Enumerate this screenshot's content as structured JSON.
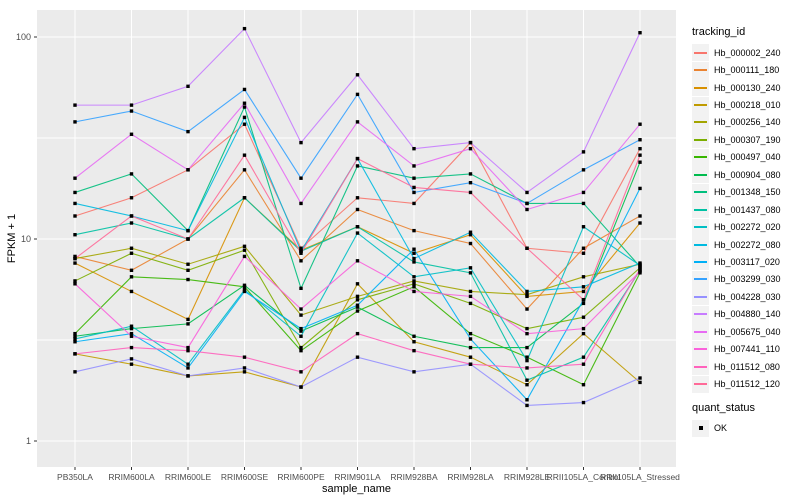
{
  "figure": {
    "x_axis_label": "sample_name",
    "y_axis_label": "FPKM + 1"
  },
  "legend": {
    "tracking_title": "tracking_id",
    "quant_title": "quant_status",
    "quant_items": [
      {
        "label": "OK"
      }
    ]
  },
  "chart_data": {
    "type": "line",
    "x_type": "categorical",
    "y_scale": "log10",
    "title": "",
    "xlabel": "sample_name",
    "ylabel": "FPKM + 1",
    "y_ticks": [
      1,
      10,
      100
    ],
    "y_minor_ticks": [
      3.1623,
      31.623
    ],
    "ylim": [
      0.74,
      135
    ],
    "grid": true,
    "legend_position": "right",
    "panel_bg": "#EBEBEB",
    "grid_color": "#FFFFFF",
    "key_bg": "#F2F2F2",
    "tick_text_color": "#4D4D4D",
    "marker": {
      "shape": "square",
      "color": "#000000",
      "label": "OK"
    },
    "categories": [
      "PB350LA",
      "RRIM600LA",
      "RRIM600LE",
      "RRIM600SE",
      "RRIM600PE",
      "RRIM901LA",
      "RRIM928BA",
      "RRIM928LA",
      "RRIM928LE",
      "RRII105LA_Control",
      "RRII105LA_Stressed"
    ],
    "series": [
      {
        "name": "Hb_000002_240",
        "color": "#F8766D",
        "values": [
          13,
          16,
          22,
          37,
          9,
          16,
          15,
          30,
          9,
          8.5,
          28
        ]
      },
      {
        "name": "Hb_000111_180",
        "color": "#EA8331",
        "values": [
          8.2,
          7,
          10,
          22,
          7.8,
          14,
          11,
          9.5,
          4.5,
          9,
          13
        ]
      },
      {
        "name": "Hb_000130_240",
        "color": "#D89000",
        "values": [
          7.6,
          5.5,
          4,
          16,
          8.8,
          11.5,
          8.5,
          10.5,
          5.2,
          5.5,
          12
        ]
      },
      {
        "name": "Hb_000218_010",
        "color": "#C09B00",
        "values": [
          2.7,
          2.4,
          2.1,
          2.2,
          1.85,
          6,
          3.1,
          2.6,
          1.9,
          3.4,
          1.95
        ]
      },
      {
        "name": "Hb_000256_140",
        "color": "#A3A500",
        "values": [
          8,
          9,
          7.5,
          9.2,
          4.2,
          5.2,
          6.2,
          5.5,
          5.3,
          6.5,
          7.5
        ]
      },
      {
        "name": "Hb_000307_190",
        "color": "#7CAE00",
        "values": [
          6.2,
          8.5,
          7,
          8.8,
          2.9,
          5,
          6,
          4.8,
          3.6,
          4.1,
          7.2
        ]
      },
      {
        "name": "Hb_000497_040",
        "color": "#39B600",
        "values": [
          3.4,
          6.5,
          6.3,
          5.8,
          2.8,
          4.4,
          5.8,
          3.4,
          2.6,
          1.9,
          6.8
        ]
      },
      {
        "name": "Hb_000904_080",
        "color": "#00BB4E",
        "values": [
          3.3,
          3.6,
          3.8,
          5.9,
          3.5,
          4.6,
          3.3,
          2.9,
          2.9,
          4.8,
          24
        ]
      },
      {
        "name": "Hb_001348_150",
        "color": "#00BF7D",
        "values": [
          17,
          21,
          11,
          45,
          5.7,
          23,
          20,
          21,
          15,
          15,
          7.3
        ]
      },
      {
        "name": "Hb_001437_080",
        "color": "#00C1A3",
        "values": [
          10.5,
          12,
          10,
          16,
          8.7,
          11.5,
          7.7,
          6.8,
          2,
          2.6,
          7
        ]
      },
      {
        "name": "Hb_002272_020",
        "color": "#00BFC4",
        "values": [
          3.2,
          3.7,
          2.4,
          5.6,
          3.3,
          10.7,
          6.5,
          7.2,
          2.5,
          11.5,
          7.4
        ]
      },
      {
        "name": "Hb_002272_080",
        "color": "#00BAE0",
        "values": [
          15,
          13,
          11,
          40,
          8.7,
          25,
          8,
          10.8,
          5.5,
          5.8,
          7.6
        ]
      },
      {
        "name": "Hb_003117_020",
        "color": "#00B0F6",
        "values": [
          3.1,
          3.4,
          2.3,
          5.5,
          3.6,
          4.7,
          8.9,
          3.2,
          1.6,
          5,
          17.8
        ]
      },
      {
        "name": "Hb_003299_030",
        "color": "#35A2FF",
        "values": [
          38,
          43,
          34,
          55,
          20,
          52,
          17,
          19,
          15,
          22,
          31
        ]
      },
      {
        "name": "Hb_004228_030",
        "color": "#9590FF",
        "values": [
          2.2,
          2.55,
          2.1,
          2.3,
          1.85,
          2.6,
          2.2,
          2.4,
          1.5,
          1.55,
          2.05
        ]
      },
      {
        "name": "Hb_004880_140",
        "color": "#C77CFF",
        "values": [
          46,
          46,
          57,
          110,
          30,
          65,
          28,
          30,
          17,
          27,
          105
        ]
      },
      {
        "name": "Hb_005675_040",
        "color": "#E76BF3",
        "values": [
          20,
          33,
          22,
          47,
          15,
          38,
          23,
          28,
          14,
          17,
          37
        ]
      },
      {
        "name": "Hb_007441_110",
        "color": "#FA62DB",
        "values": [
          6,
          3.3,
          2.9,
          8.2,
          4.5,
          7.8,
          5.5,
          5.2,
          3.4,
          3.6,
          6.9
        ]
      },
      {
        "name": "Hb_011512_080",
        "color": "#FF62BC",
        "values": [
          2.7,
          2.9,
          2.8,
          2.6,
          2.2,
          3.4,
          2.8,
          2.4,
          2.3,
          2.4,
          7.1
        ]
      },
      {
        "name": "Hb_011512_120",
        "color": "#FF6A98",
        "values": [
          8,
          13,
          10,
          26,
          8.5,
          25,
          18,
          17,
          9,
          5,
          26
        ]
      }
    ]
  }
}
